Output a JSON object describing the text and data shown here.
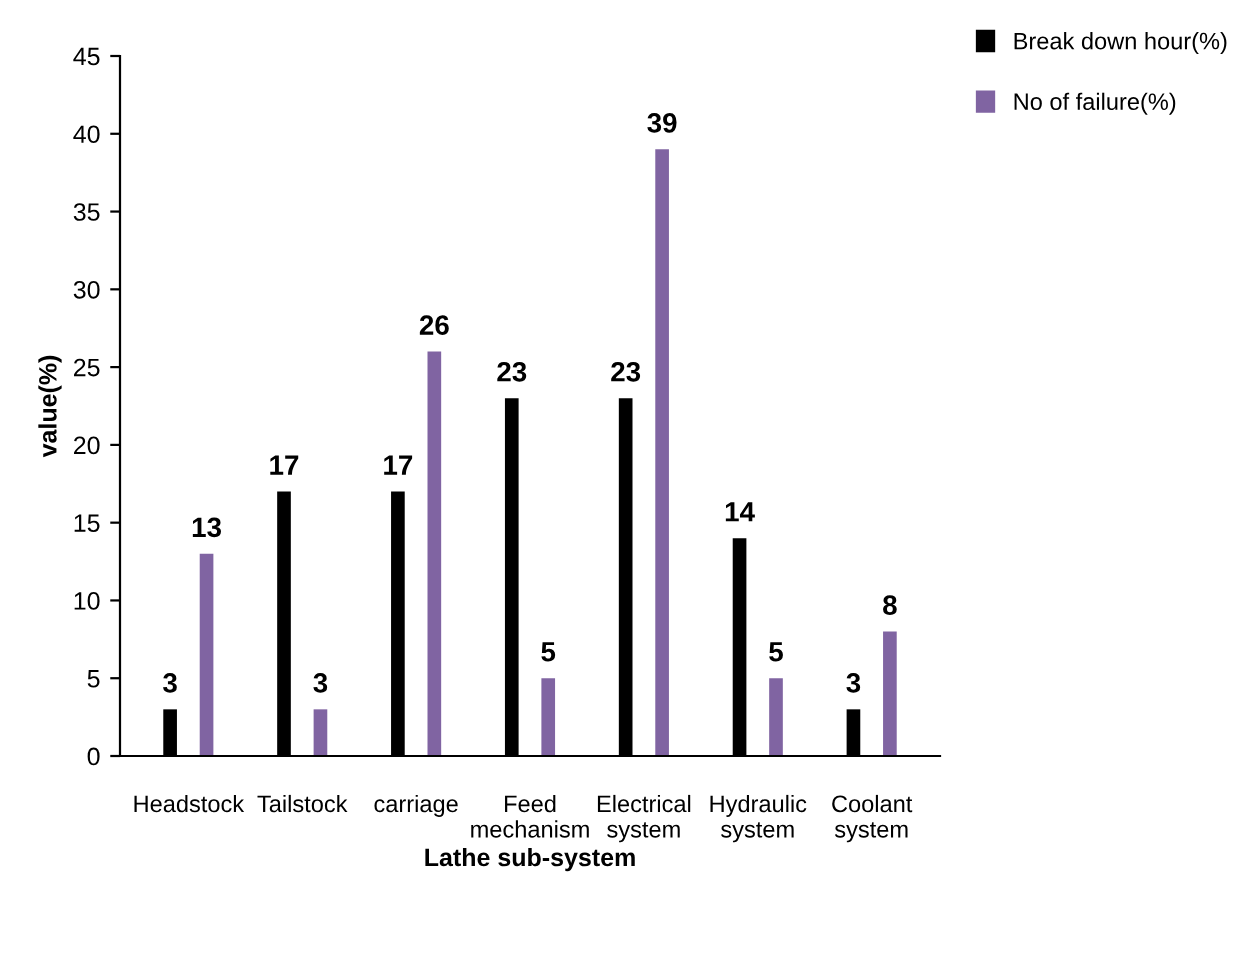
{
  "chart_data": {
    "type": "bar",
    "xlabel": "Lathe sub-system",
    "ylabel": "value(%)",
    "categories": [
      "Headstock",
      "Tailstock",
      "carriage",
      "Feed\nmechanism",
      "Electrical\nsystem",
      "Hydraulic\nsystem",
      "Coolant\nsystem"
    ],
    "series": [
      {
        "name": "Break down hour(%)",
        "color": "#000000",
        "values": [
          3,
          17,
          17,
          23,
          23,
          14,
          3
        ]
      },
      {
        "name": "No of failure(%)",
        "color": "#8064a2",
        "values": [
          13,
          3,
          26,
          5,
          39,
          5,
          8
        ]
      }
    ],
    "ylim": [
      0,
      45
    ],
    "yticks": [
      0,
      5,
      10,
      15,
      20,
      25,
      30,
      35,
      40,
      45
    ],
    "data_labels": true,
    "grid": false,
    "legend": "top right"
  }
}
